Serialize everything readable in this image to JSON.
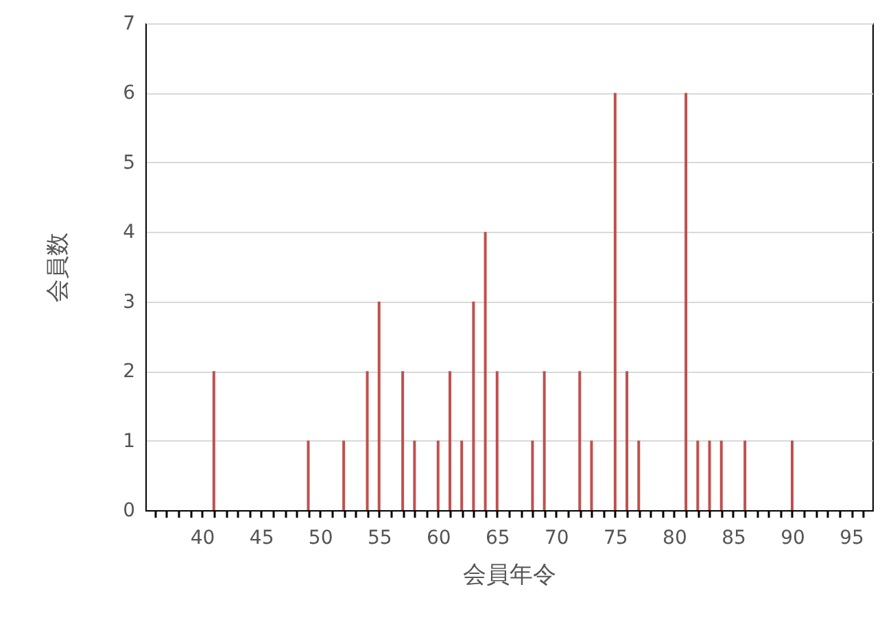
{
  "chart_data": {
    "type": "bar",
    "xlabel": "会員年令",
    "ylabel": "会員数",
    "x": [
      41,
      49,
      52,
      54,
      55,
      57,
      58,
      60,
      61,
      62,
      63,
      64,
      65,
      68,
      69,
      72,
      73,
      75,
      76,
      77,
      81,
      82,
      83,
      84,
      86,
      90
    ],
    "values": [
      2,
      1,
      1,
      2,
      3,
      2,
      1,
      1,
      2,
      1,
      3,
      4,
      2,
      1,
      2,
      2,
      1,
      6,
      2,
      1,
      6,
      1,
      1,
      1,
      1,
      1
    ],
    "color": "#c0504d",
    "xlim": [
      35.2,
      96.8
    ],
    "xticks": [
      {
        "value": 36,
        "label": null
      },
      {
        "value": 37,
        "label": null
      },
      {
        "value": 38,
        "label": null
      },
      {
        "value": 39,
        "label": null
      },
      40,
      {
        "value": 41,
        "label": null
      },
      {
        "value": 42,
        "label": null
      },
      {
        "value": 43,
        "label": null
      },
      {
        "value": 44,
        "label": null
      },
      45,
      {
        "value": 46,
        "label": null
      },
      {
        "value": 47,
        "label": null
      },
      {
        "value": 48,
        "label": null
      },
      {
        "value": 49,
        "label": null
      },
      50,
      {
        "value": 51,
        "label": null
      },
      {
        "value": 52,
        "label": null
      },
      {
        "value": 53,
        "label": null
      },
      {
        "value": 54,
        "label": null
      },
      55,
      {
        "value": 56,
        "label": null
      },
      {
        "value": 57,
        "label": null
      },
      {
        "value": 58,
        "label": null
      },
      {
        "value": 59,
        "label": null
      },
      60,
      {
        "value": 61,
        "label": null
      },
      {
        "value": 62,
        "label": null
      },
      {
        "value": 63,
        "label": null
      },
      {
        "value": 64,
        "label": null
      },
      65,
      {
        "value": 66,
        "label": null
      },
      {
        "value": 67,
        "label": null
      },
      {
        "value": 68,
        "label": null
      },
      {
        "value": 69,
        "label": null
      },
      70,
      {
        "value": 71,
        "label": null
      },
      {
        "value": 72,
        "label": null
      },
      {
        "value": 73,
        "label": null
      },
      {
        "value": 74,
        "label": null
      },
      75,
      {
        "value": 76,
        "label": null
      },
      {
        "value": 77,
        "label": null
      },
      {
        "value": 78,
        "label": null
      },
      {
        "value": 79,
        "label": null
      },
      80,
      {
        "value": 81,
        "label": null
      },
      {
        "value": 82,
        "label": null
      },
      {
        "value": 83,
        "label": null
      },
      {
        "value": 84,
        "label": null
      },
      85,
      {
        "value": 86,
        "label": null
      },
      {
        "value": 87,
        "label": null
      },
      {
        "value": 88,
        "label": null
      },
      {
        "value": 89,
        "label": null
      },
      90,
      {
        "value": 91,
        "label": null
      },
      {
        "value": 92,
        "label": null
      },
      {
        "value": 93,
        "label": null
      },
      {
        "value": 94,
        "label": null
      },
      95,
      {
        "value": 96,
        "label": null
      }
    ],
    "ylim": [
      0,
      7
    ],
    "yticks": [
      0,
      1,
      2,
      3,
      4,
      5,
      6,
      7
    ],
    "grid": "y"
  }
}
